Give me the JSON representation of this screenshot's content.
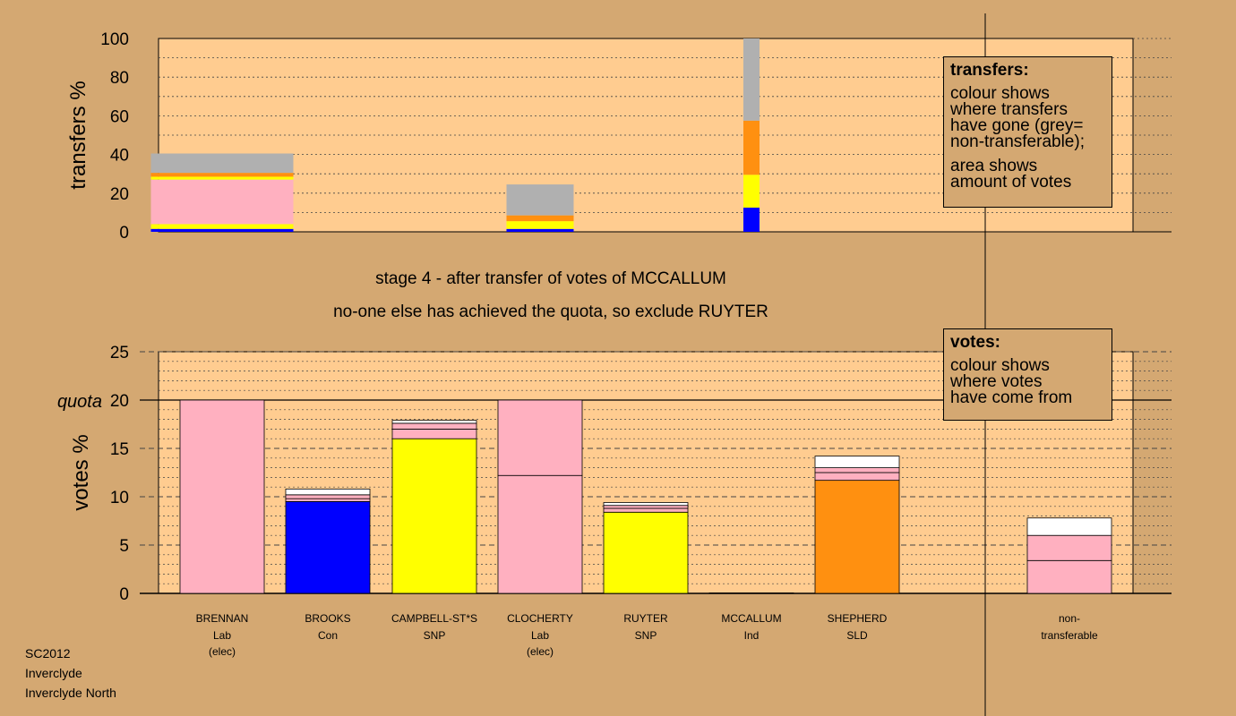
{
  "chart_data": [
    {
      "type": "bar",
      "name": "transfers",
      "ylabel": "transfers %",
      "ylim": [
        0,
        100
      ],
      "yticks": [
        0,
        20,
        40,
        60,
        80,
        100
      ],
      "categories": [
        "BRENNAN",
        "BROOKS",
        "CAMPBELL-ST*S",
        "CLOCHERTY",
        "RUYTER",
        "MCCALLUM",
        "SHEPHERD",
        "non-transferable"
      ],
      "stacks": [
        {
          "category": "BRENNAN",
          "segments": [
            {
              "color": "#0000ff",
              "value": 1.5
            },
            {
              "color": "#ffff00",
              "value": 2.5
            },
            {
              "color": "#ffb0c0",
              "value": 23
            },
            {
              "color": "#ffff00",
              "value": 1.5
            },
            {
              "color": "#ff9010",
              "value": 2
            },
            {
              "color": "#b0b0b0",
              "value": 10
            }
          ]
        },
        {
          "category": "CLOCHERTY",
          "segments": [
            {
              "color": "#0000ff",
              "value": 1.5
            },
            {
              "color": "#ffff00",
              "value": 4
            },
            {
              "color": "#ff9010",
              "value": 3
            },
            {
              "color": "#b0b0b0",
              "value": 16
            }
          ]
        },
        {
          "category": "MCCALLUM",
          "segments": [
            {
              "color": "#0000ff",
              "value": 12.5
            },
            {
              "color": "#ffff00",
              "value": 17
            },
            {
              "color": "#ff9010",
              "value": 28
            },
            {
              "color": "#b0b0b0",
              "value": 42.5
            }
          ]
        }
      ]
    },
    {
      "type": "bar",
      "name": "votes",
      "ylabel": "votes %",
      "ylim": [
        0,
        25
      ],
      "yticks": [
        0,
        5,
        10,
        15,
        20,
        25
      ],
      "quota": 20,
      "quota_label": "quota",
      "categories": [
        "BRENNAN",
        "BROOKS",
        "CAMPBELL-ST*S",
        "CLOCHERTY",
        "RUYTER",
        "MCCALLUM",
        "SHEPHERD",
        "non-transferable"
      ],
      "stacks": [
        {
          "category": "BRENNAN",
          "segments": [
            {
              "color": "#ffb0c0",
              "value": 20
            }
          ]
        },
        {
          "category": "BROOKS",
          "segments": [
            {
              "color": "#0000ff",
              "value": 9.5
            },
            {
              "color": "#ffb0c0",
              "value": 0.3
            },
            {
              "color": "#ffb0c0",
              "value": 0.4
            },
            {
              "color": "#ffffff",
              "value": 0.6
            }
          ]
        },
        {
          "category": "CAMPBELL-ST*S",
          "segments": [
            {
              "color": "#ffff00",
              "value": 16
            },
            {
              "color": "#ffb0c0",
              "value": 1
            },
            {
              "color": "#ffb0c0",
              "value": 0.6
            },
            {
              "color": "#ffffff",
              "value": 0.3
            }
          ]
        },
        {
          "category": "CLOCHERTY",
          "segments": [
            {
              "color": "#ffb0c0",
              "value": 12.2
            },
            {
              "color": "#ffb0c0",
              "value": 7.8
            }
          ]
        },
        {
          "category": "RUYTER",
          "segments": [
            {
              "color": "#ffff00",
              "value": 8.4
            },
            {
              "color": "#ffb0c0",
              "value": 0.4
            },
            {
              "color": "#ffb0c0",
              "value": 0.3
            },
            {
              "color": "#ffffff",
              "value": 0.3
            }
          ]
        },
        {
          "category": "MCCALLUM",
          "segments": [
            {
              "color": "#ffb0c0",
              "value": 0.05
            }
          ]
        },
        {
          "category": "SHEPHERD",
          "segments": [
            {
              "color": "#ff9010",
              "value": 11.7
            },
            {
              "color": "#ffb0c0",
              "value": 0.8
            },
            {
              "color": "#ffb0c0",
              "value": 0.5
            },
            {
              "color": "#ffffff",
              "value": 1.2
            }
          ]
        },
        {
          "category": "non-transferable",
          "segments": [
            {
              "color": "#ffb0c0",
              "value": 3.4
            },
            {
              "color": "#ffb0c0",
              "value": 2.6
            },
            {
              "color": "#ffffff",
              "value": 1.8
            }
          ]
        }
      ]
    }
  ],
  "candidates": [
    {
      "name": "BRENNAN",
      "party": "Lab",
      "status": "(elec)"
    },
    {
      "name": "BROOKS",
      "party": "Con",
      "status": ""
    },
    {
      "name": "CAMPBELL-ST*S",
      "party": "SNP",
      "status": ""
    },
    {
      "name": "CLOCHERTY",
      "party": "Lab",
      "status": "(elec)"
    },
    {
      "name": "RUYTER",
      "party": "SNP",
      "status": ""
    },
    {
      "name": "MCCALLUM",
      "party": "Ind",
      "status": ""
    },
    {
      "name": "SHEPHERD",
      "party": "SLD",
      "status": ""
    },
    {
      "name": "non-",
      "party": "transferable",
      "status": ""
    }
  ],
  "stage": {
    "line1": "stage 4 - after transfer of votes of MCCALLUM",
    "line2": "no-one else has achieved the quota, so exclude RUYTER"
  },
  "transfers_legend": {
    "title": "transfers:",
    "lines": [
      "colour shows",
      "where transfers",
      "have gone (grey=",
      "non-transferable);"
    ],
    "lines2": [
      "area shows",
      "amount of votes"
    ]
  },
  "votes_legend": {
    "title": "votes:",
    "lines": [
      "colour shows",
      "where votes",
      "have come from"
    ]
  },
  "footer": {
    "election": "SC2012",
    "council": "Inverclyde",
    "ward": "Inverclyde North"
  },
  "colors": {
    "background": "#d4a872",
    "plot_background": "#ffcc90",
    "pink": "#ffb0c0",
    "yellow": "#ffff00",
    "blue": "#0000ff",
    "orange": "#ff9010",
    "grey": "#b0b0b0"
  }
}
